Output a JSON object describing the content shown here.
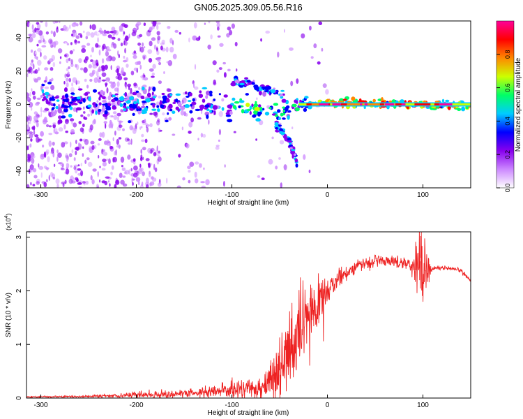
{
  "title": "GN05.2025.309.05.56.R16",
  "chart_data": [
    {
      "type": "heatmap",
      "title": "GN05.2025.309.05.56.R16",
      "xlabel": "Height of straight line (km)",
      "ylabel": "Frequency (Hz)",
      "xlim": [
        -315,
        150
      ],
      "ylim": [
        -50,
        50
      ],
      "xticks": [
        -300,
        -200,
        -100,
        0,
        100
      ],
      "yticks": [
        -40,
        -20,
        0,
        20,
        40
      ],
      "colorbar": {
        "label": "Normalized spectral amplitude",
        "range": [
          0,
          1
        ],
        "ticks": [
          0.0,
          0.2,
          0.4,
          0.6,
          0.8
        ],
        "colors": [
          "#ffffff",
          "#cc88ff",
          "#8800ee",
          "#0000ff",
          "#00ccff",
          "#00ff66",
          "#ccff00",
          "#ff8800",
          "#ff0000",
          "#ff0099"
        ]
      },
      "features": [
        {
          "name": "main trace",
          "x": [
            -300,
            -200,
            -150,
            -100,
            -75,
            -60,
            -45,
            -30,
            0,
            150
          ],
          "freq": [
            2,
            1,
            1,
            0,
            -3,
            -5,
            -5,
            0,
            1,
            -1
          ]
        },
        {
          "name": "upper branch",
          "x": [
            -100,
            -80,
            -60,
            -45
          ],
          "freq": [
            15,
            12,
            8,
            5
          ]
        },
        {
          "name": "lower branch",
          "x": [
            -55,
            -40,
            -32
          ],
          "freq": [
            -12,
            -22,
            -35
          ]
        }
      ]
    },
    {
      "type": "line",
      "xlabel": "Height of straight line (km)",
      "ylabel": "SNR (10 * v/v)",
      "multiplier": "(x10",
      "multiplier_exp": "4",
      "multiplier_close": ")",
      "xlim": [
        -315,
        150
      ],
      "ylim": [
        0,
        3.1
      ],
      "xticks": [
        -300,
        -200,
        -100,
        0,
        100
      ],
      "yticks": [
        0,
        1,
        2,
        3
      ],
      "series": [
        {
          "name": "SNR",
          "color": "#ee2222",
          "x": [
            -315,
            -250,
            -200,
            -150,
            -120,
            -100,
            -80,
            -70,
            -60,
            -50,
            -40,
            -30,
            -20,
            -10,
            0,
            10,
            20,
            30,
            40,
            50,
            60,
            70,
            80,
            90,
            95,
            100,
            110,
            120,
            130,
            140,
            150
          ],
          "y": [
            0.02,
            0.03,
            0.06,
            0.08,
            0.12,
            0.15,
            0.18,
            0.2,
            0.35,
            0.55,
            0.8,
            1.15,
            1.45,
            1.75,
            2.0,
            2.2,
            2.35,
            2.45,
            2.52,
            2.55,
            2.56,
            2.55,
            2.52,
            2.48,
            2.45,
            2.4,
            2.42,
            2.43,
            2.4,
            2.38,
            2.18
          ],
          "noise": [
            0.01,
            0.01,
            0.03,
            0.04,
            0.06,
            0.08,
            0.1,
            0.12,
            0.2,
            0.3,
            0.45,
            0.4,
            0.35,
            0.25,
            0.12,
            0.08,
            0.07,
            0.06,
            0.06,
            0.05,
            0.05,
            0.05,
            0.06,
            0.1,
            0.4,
            0.3,
            0.03,
            0.02,
            0.02,
            0.02,
            0.02
          ]
        }
      ]
    }
  ]
}
